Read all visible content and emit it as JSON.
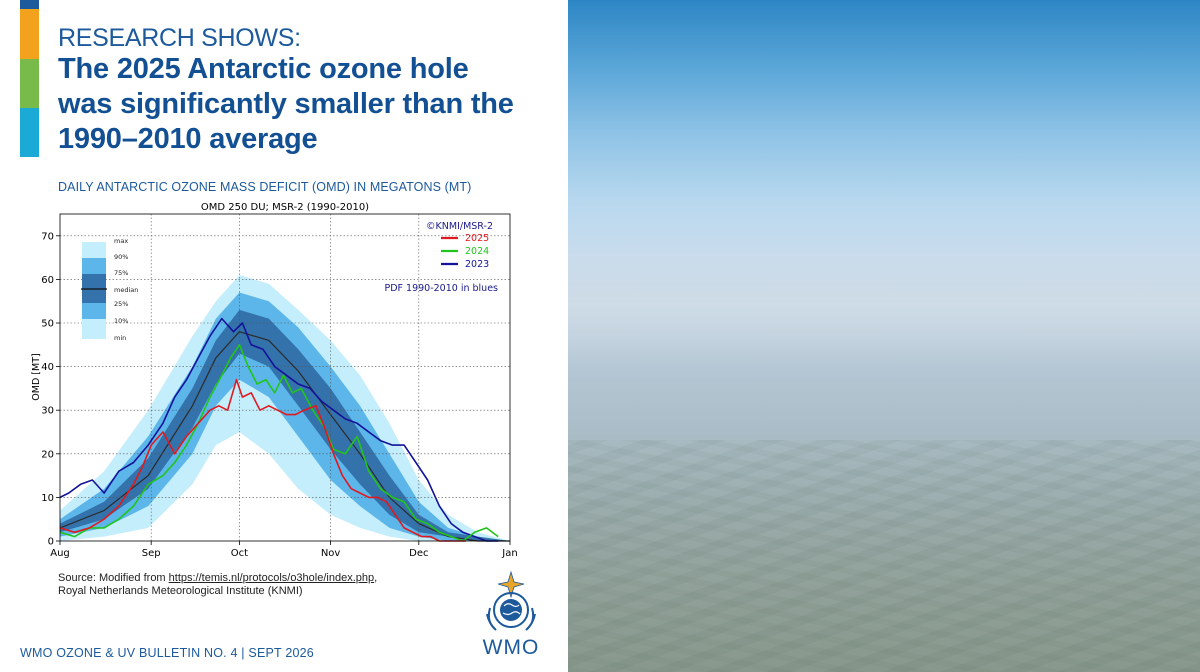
{
  "slide": {
    "kicker": "RESEARCH SHOWS:",
    "headline": "The 2025 Antarctic ozone hole was significantly smaller than the 1990–2010 average",
    "chart_caption": "DAILY ANTARCTIC OZONE MASS DEFICIT (OMD) IN MEGATONS (MT)",
    "source_line1_prefix": "Source: Modified from ",
    "source_link": "https://temis.nl/protocols/o3hole/index.php",
    "source_line1_suffix": ",",
    "source_line2": "Royal Netherlands Meteorological Institute (KNMI)",
    "footer": "WMO OZONE & UV BULLETIN NO. 4 | SEPT 2026",
    "logo_text": "WMO",
    "accent_colors": [
      "#1c5a9c",
      "#f2a21c",
      "#78bb4a",
      "#1ba9d6"
    ]
  },
  "chart_data": {
    "type": "line",
    "title": "OMD 250 DU; MSR-2 (1990-2010)",
    "ylabel": "OMD [MT]",
    "xlabel": "",
    "x_unit": "day of year",
    "xlim": [
      213,
      366
    ],
    "ylim": [
      0,
      75
    ],
    "yticks": [
      0,
      10,
      20,
      30,
      40,
      50,
      60,
      70
    ],
    "xtick_labels": [
      {
        "day": 213,
        "label": "Aug"
      },
      {
        "day": 244,
        "label": "Sep"
      },
      {
        "day": 274,
        "label": "Oct"
      },
      {
        "day": 305,
        "label": "Nov"
      },
      {
        "day": 335,
        "label": "Dec"
      },
      {
        "day": 366,
        "label": "Jan"
      }
    ],
    "grid": true,
    "credit": "©KNMI/MSR-2",
    "annotation": "PDF 1990-2010 in blues",
    "legend_position": "top-right",
    "series": [
      {
        "name": "2025",
        "color": "#e0191f",
        "x": [
          213,
          218,
          223,
          228,
          233,
          238,
          241,
          244,
          248,
          252,
          256,
          260,
          264,
          267,
          270,
          273,
          275,
          278,
          281,
          284,
          287,
          290,
          293,
          296,
          300,
          303,
          306,
          309,
          312,
          315,
          318,
          321,
          324,
          327,
          330,
          333,
          336,
          339,
          342,
          345,
          348,
          351
        ],
        "y": [
          3,
          2,
          3,
          5,
          8,
          13,
          17,
          22,
          25,
          20,
          24,
          27,
          30,
          31,
          30,
          37,
          33,
          34,
          30,
          31,
          30,
          29,
          29,
          30,
          31,
          26,
          20,
          15,
          12,
          11,
          10,
          10,
          9,
          6,
          3,
          2,
          1,
          1,
          0,
          0,
          0,
          0
        ]
      },
      {
        "name": "2024",
        "color": "#22c51b",
        "x": [
          213,
          218,
          223,
          228,
          233,
          238,
          243,
          248,
          252,
          256,
          260,
          264,
          268,
          271,
          274,
          277,
          280,
          283,
          286,
          289,
          292,
          295,
          299,
          303,
          306,
          310,
          314,
          318,
          322,
          326,
          330,
          334,
          338,
          342,
          346,
          350,
          354,
          358,
          362
        ],
        "y": [
          2,
          1,
          3,
          3,
          5,
          8,
          13,
          15,
          18,
          22,
          27,
          33,
          38,
          42,
          45,
          40,
          36,
          37,
          34,
          38,
          34,
          35,
          30,
          26,
          21,
          20,
          24,
          16,
          12,
          10,
          9,
          5,
          4,
          2,
          1,
          0,
          2,
          3,
          1
        ]
      },
      {
        "name": "2023",
        "color": "#13139a",
        "x": [
          213,
          216,
          220,
          224,
          228,
          233,
          238,
          243,
          248,
          252,
          256,
          260,
          264,
          268,
          272,
          275,
          278,
          282,
          286,
          290,
          294,
          298,
          302,
          306,
          310,
          314,
          318,
          322,
          326,
          330,
          334,
          338,
          342,
          346,
          350,
          354,
          358,
          362
        ],
        "y": [
          10,
          11,
          13,
          14,
          11,
          16,
          18,
          22,
          27,
          33,
          37,
          42,
          47,
          51,
          48,
          50,
          45,
          44,
          40,
          38,
          36,
          35,
          32,
          30,
          28,
          27,
          25,
          23,
          22,
          22,
          18,
          14,
          8,
          4,
          2,
          1,
          0,
          0
        ]
      }
    ],
    "pdf_1990_2010": {
      "x": [
        213,
        228,
        243,
        258,
        266,
        274,
        284,
        294,
        305,
        315,
        325,
        335,
        345,
        355,
        366
      ],
      "min": [
        0,
        1,
        3,
        13,
        22,
        25,
        20,
        12,
        6,
        3,
        1,
        0,
        0,
        0,
        0
      ],
      "p10": [
        1,
        3,
        8,
        20,
        31,
        37,
        33,
        24,
        14,
        8,
        3,
        1,
        0,
        0,
        0
      ],
      "p25": [
        2,
        5,
        12,
        26,
        36,
        43,
        40,
        31,
        21,
        13,
        6,
        2,
        1,
        0,
        0
      ],
      "median": [
        3,
        7,
        15,
        31,
        42,
        48,
        46,
        39,
        29,
        20,
        10,
        4,
        1,
        0,
        0
      ],
      "p75": [
        4,
        9,
        19,
        35,
        46,
        53,
        51,
        44,
        35,
        25,
        15,
        6,
        2,
        1,
        0
      ],
      "p90": [
        5,
        12,
        24,
        40,
        51,
        57,
        55,
        49,
        40,
        31,
        20,
        9,
        3,
        1,
        0
      ],
      "max": [
        7,
        16,
        30,
        47,
        55,
        61,
        59,
        53,
        46,
        38,
        27,
        14,
        6,
        2,
        0
      ]
    },
    "pdf_legend": [
      "max",
      "90%",
      "75%",
      "median",
      "25%",
      "10%",
      "min"
    ]
  }
}
